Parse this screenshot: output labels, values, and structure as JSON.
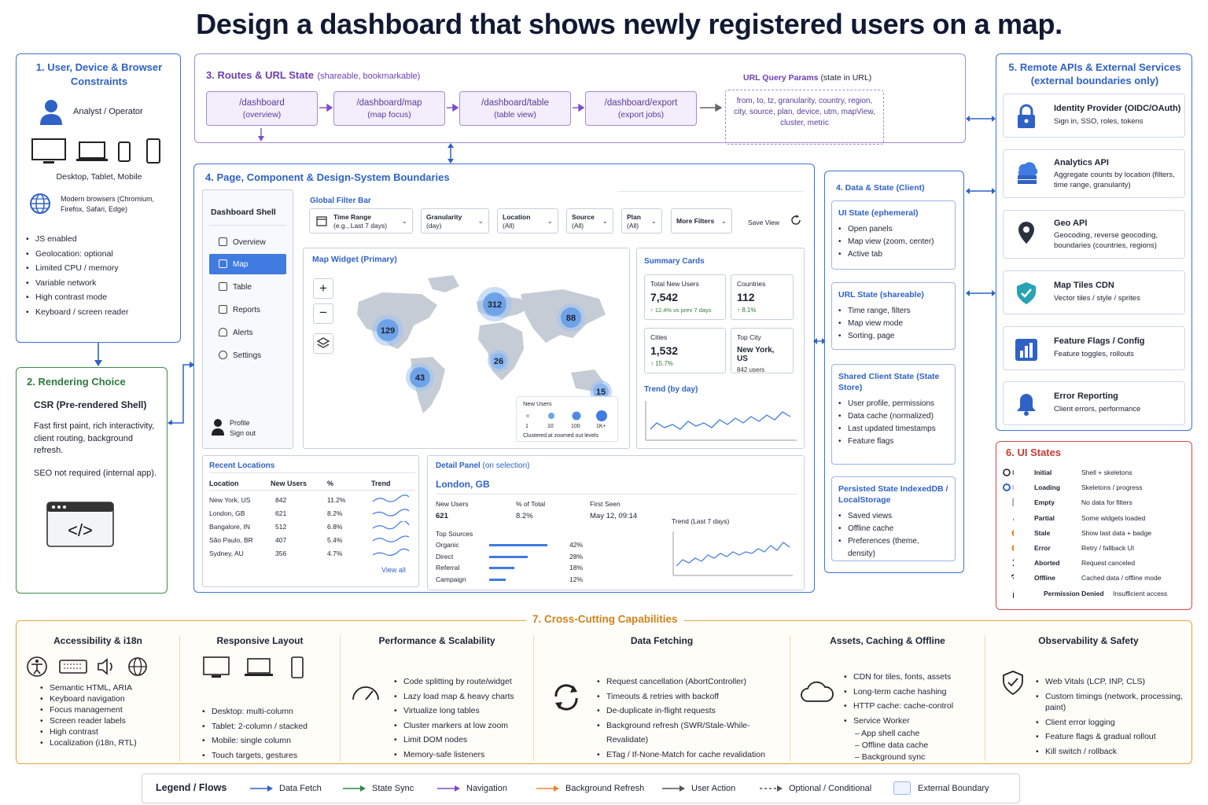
{
  "title": "Design a dashboard that shows newly registered users on a map.",
  "s1": {
    "title": "1. User, Device & Browser Constraints",
    "persona": "Analyst / Operator",
    "devices": "Desktop, Tablet, Mobile",
    "browsers": "Modern browsers (Chromium, Firefox, Safari, Edge)",
    "items": [
      "JS enabled",
      "Geolocation: optional",
      "Limited CPU / memory",
      "Variable network",
      "High contrast mode",
      "Keyboard / screen reader"
    ]
  },
  "s2": {
    "title": "2. Rendering Choice",
    "choice": "CSR (Pre-rendered Shell)",
    "desc": "Fast first paint, rich interactivity, client routing, background refresh.",
    "seo": "SEO not required (internal app)."
  },
  "s3": {
    "title": "3. Routes & URL State",
    "title_note": "(shareable, bookmarkable)",
    "routes": [
      {
        "path": "/dashboard",
        "desc": "(overview)"
      },
      {
        "path": "/dashboard/map",
        "desc": "(map focus)"
      },
      {
        "path": "/dashboard/table",
        "desc": "(table view)"
      },
      {
        "path": "/dashboard/export",
        "desc": "(export jobs)"
      }
    ],
    "params_title": "URL Query Params",
    "params_note": "(state in URL)",
    "params": "from, to, tz, granularity, country, region, city, source, plan, device, utm, mapView, cluster, metric"
  },
  "s4": {
    "title": "4. Page, Component & Design-System Boundaries",
    "shell": {
      "title": "Dashboard Shell",
      "nav": [
        "Overview",
        "Map",
        "Table",
        "Reports",
        "Alerts",
        "Settings"
      ],
      "profile": "Profile",
      "signout": "Sign out"
    },
    "filter": {
      "title": "Global Filter Bar",
      "filters": [
        {
          "label": "Time Range",
          "value": "(e.g., Last 7 days)"
        },
        {
          "label": "Granularity",
          "value": "(day)"
        },
        {
          "label": "Location",
          "value": "(All)"
        },
        {
          "label": "Source",
          "value": "(All)"
        },
        {
          "label": "Plan",
          "value": "(All)"
        }
      ],
      "more": "More Filters",
      "save": "Save View"
    },
    "map": {
      "title": "Map Widget (Primary)",
      "clusters": [
        "129",
        "312",
        "88",
        "26",
        "43",
        "15"
      ],
      "legend_title": "New Users",
      "legend_vals": [
        "1",
        "10",
        "100",
        "1K+"
      ],
      "legend_note": "Clustered at zoomed out levels"
    },
    "summary": {
      "title": "Summary Cards",
      "cards": [
        {
          "label": "Total New Users",
          "value": "7,542",
          "delta": "↑ 12.4% vs prev 7 days"
        },
        {
          "label": "Countries",
          "value": "112",
          "delta": "↑ 8.1%"
        },
        {
          "label": "Cities",
          "value": "1,532",
          "delta": "↑ 15.7%"
        },
        {
          "label": "Top City",
          "value": "New York, US",
          "delta": "842 users"
        }
      ],
      "trend": "Trend (by day)"
    },
    "recent": {
      "title": "Recent Locations",
      "headers": [
        "Location",
        "New Users",
        "%",
        "Trend"
      ],
      "rows": [
        [
          "New York, US",
          "842",
          "11.2%"
        ],
        [
          "London, GB",
          "621",
          "8.2%"
        ],
        [
          "Bangalore, IN",
          "512",
          "6.8%"
        ],
        [
          "São Paulo, BR",
          "407",
          "5.4%"
        ],
        [
          "Sydney, AU",
          "356",
          "4.7%"
        ]
      ],
      "viewall": "View all"
    },
    "detail": {
      "title": "Detail Panel",
      "title_note": "(on selection)",
      "city": "London, GB",
      "h1": "New Users",
      "v1": "621",
      "h2": "% of Total",
      "v2": "8.2%",
      "h3": "First Seen",
      "v3": "May 12, 09:14",
      "trend": "Trend (Last 7 days)",
      "sources_title": "Top Sources",
      "sources": [
        {
          "name": "Organic",
          "pct": "42%",
          "frac": 0.42
        },
        {
          "name": "Direct",
          "pct": "28%",
          "frac": 0.28
        },
        {
          "name": "Referral",
          "pct": "18%",
          "frac": 0.18
        },
        {
          "name": "Campaign",
          "pct": "12%",
          "frac": 0.12
        }
      ]
    }
  },
  "s4b": {
    "title": "4. Data & State (Client)",
    "boxes": [
      {
        "title": "UI State (ephemeral)",
        "items": [
          "Open panels",
          "Map view (zoom, center)",
          "Active tab"
        ]
      },
      {
        "title": "URL State (shareable)",
        "items": [
          "Time range, filters",
          "Map view mode",
          "Sorting, page"
        ]
      },
      {
        "title": "Shared Client State (State Store)",
        "items": [
          "User profile, permissions",
          "Data cache (normalized)",
          "Last updated timestamps",
          "Feature flags"
        ]
      },
      {
        "title": "Persisted State IndexedDB / LocalStorage",
        "items": [
          "Saved views",
          "Offline cache",
          "Preferences (theme, density)"
        ]
      }
    ]
  },
  "s5": {
    "title": "5. Remote APIs & External Services (external boundaries only)",
    "services": [
      {
        "name": "Identity Provider (OIDC/OAuth)",
        "desc": "Sign in, SSO, roles, tokens"
      },
      {
        "name": "Analytics API",
        "desc": "Aggregate counts by location (filters, time range, granularity)"
      },
      {
        "name": "Geo API",
        "desc": "Geocoding, reverse geocoding, boundaries (countries, regions)"
      },
      {
        "name": "Map Tiles CDN",
        "desc": "Vector tiles / style / sprites"
      },
      {
        "name": "Feature Flags / Config",
        "desc": "Feature toggles, rollouts"
      },
      {
        "name": "Error Reporting",
        "desc": "Client errors, performance"
      }
    ]
  },
  "s6": {
    "title": "6. UI States",
    "states": [
      {
        "name": "Initial",
        "desc": "Shell + skeletons"
      },
      {
        "name": "Loading",
        "desc": "Skeletons / progress"
      },
      {
        "name": "Empty",
        "desc": "No data for filters"
      },
      {
        "name": "Partial",
        "desc": "Some widgets loaded"
      },
      {
        "name": "Stale",
        "desc": "Show last data + badge"
      },
      {
        "name": "Error",
        "desc": "Retry / fallback UI"
      },
      {
        "name": "Aborted",
        "desc": "Request canceled"
      },
      {
        "name": "Offline",
        "desc": "Cached data / offline mode"
      },
      {
        "name": "Permission Denied",
        "desc": "Insufficient access"
      }
    ]
  },
  "s7": {
    "title": "7. Cross-Cutting Capabilities",
    "cols": [
      {
        "title": "Accessibility & i18n",
        "items": [
          "Semantic HTML, ARIA",
          "Keyboard navigation",
          "Focus management",
          "Screen reader labels",
          "High contrast",
          "Localization (i18n, RTL)"
        ]
      },
      {
        "title": "Responsive Layout",
        "items": [
          "Desktop: multi-column",
          "Tablet: 2-column / stacked",
          "Mobile: single column",
          "Touch targets, gestures"
        ]
      },
      {
        "title": "Performance & Scalability",
        "items": [
          "Code splitting by route/widget",
          "Lazy load map & heavy charts",
          "Virtualize long tables",
          "Cluster markers at low zoom",
          "Limit DOM nodes",
          "Memory-safe listeners"
        ]
      },
      {
        "title": "Data Fetching",
        "items": [
          "Request cancellation (AbortController)",
          "Timeouts & retries with backoff",
          "De-duplicate in-flight requests",
          "Background refresh (SWR/Stale-While-Revalidate)",
          "ETag / If-None-Match for cache revalidation"
        ]
      },
      {
        "title": "Assets, Caching & Offline",
        "items": [
          "CDN for tiles, fonts, assets",
          "Long-term cache hashing",
          "HTTP cache: cache-control",
          "Service Worker"
        ],
        "sub": [
          "– App shell cache",
          "– Offline data cache",
          "– Background sync"
        ]
      },
      {
        "title": "Observability & Safety",
        "items": [
          "Web Vitals (LCP, INP, CLS)",
          "Custom timings (network, processing, paint)",
          "Client error logging",
          "Feature flags & gradual rollout",
          "Kill switch / rollback"
        ]
      }
    ]
  },
  "legend": {
    "title": "Legend / Flows",
    "items": [
      {
        "label": "Data Fetch",
        "color": "#2f62c5"
      },
      {
        "label": "State Sync",
        "color": "#2f8a3f"
      },
      {
        "label": "Navigation",
        "color": "#7a4fc9"
      },
      {
        "label": "Background Refresh",
        "color": "#e8892a"
      },
      {
        "label": "User Action",
        "color": "#555555"
      },
      {
        "label": "Optional / Conditional",
        "color": "#555555"
      },
      {
        "label": "External Boundary",
        "color": "#9bb6e6"
      }
    ]
  }
}
